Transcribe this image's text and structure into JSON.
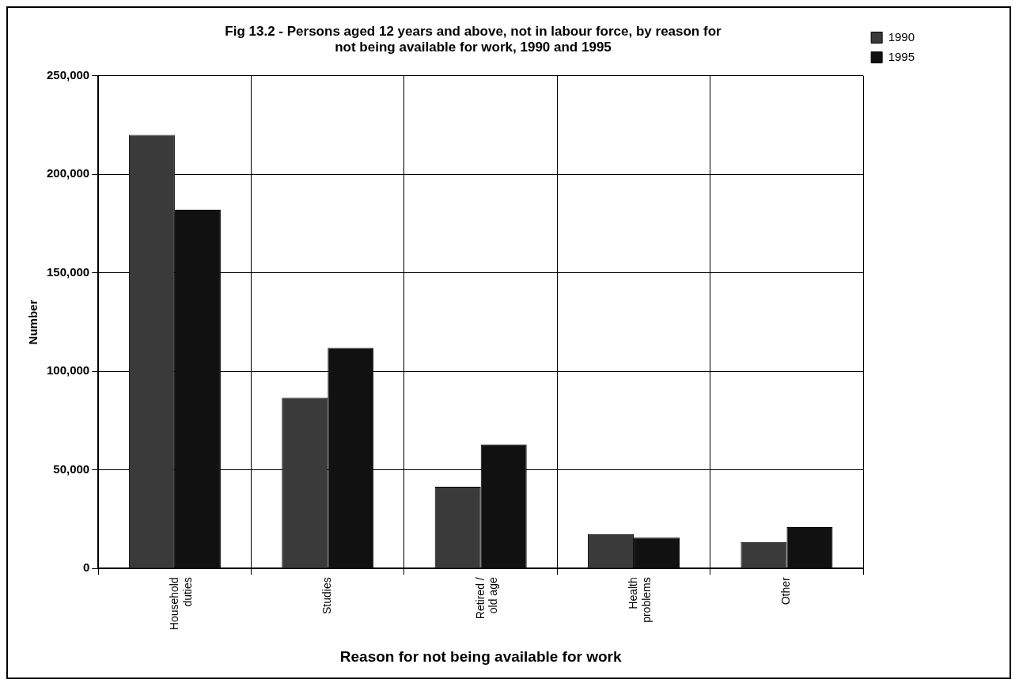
{
  "chart_data": {
    "type": "bar",
    "title": "Fig 13.2 - Persons aged 12 years and above, not in labour force, by reason for not being available for work, 1990 and 1995",
    "xlabel": "Reason for not being available for work",
    "ylabel": "Number",
    "categories": [
      "Household duties",
      "Studies",
      "Retired / old age",
      "Health problems",
      "Other"
    ],
    "series": [
      {
        "name": "1990",
        "color": "#3a3a3a",
        "values": [
          220000,
          86700,
          41500,
          17500,
          13500
        ]
      },
      {
        "name": "1995",
        "color": "#111111",
        "values": [
          182000,
          112000,
          63000,
          15700,
          21000
        ]
      }
    ],
    "ylim": [
      0,
      250000
    ],
    "yticks": [
      0,
      {
        "value": 50000,
        "label": "50,000"
      },
      {
        "value": 100000,
        "label": "100,000"
      },
      {
        "value": 150000,
        "label": "150,000"
      },
      {
        "value": 200000,
        "label": "200,000"
      },
      {
        "value": 250000,
        "label": "250,000"
      }
    ],
    "grid": true,
    "legend": "top right"
  }
}
